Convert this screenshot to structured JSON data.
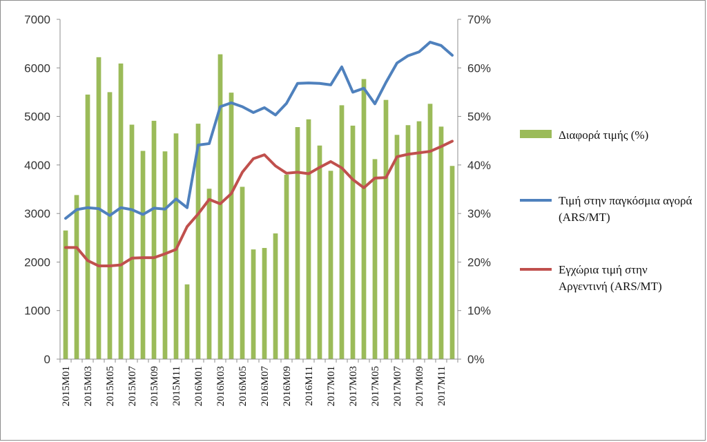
{
  "chart_data": {
    "type": "bar",
    "title": "",
    "xlabel": "",
    "ylabel": "",
    "y_left_lim": [
      0,
      7000
    ],
    "y_right_lim": [
      0,
      70
    ],
    "y_left_ticks": [
      "0",
      "1000",
      "2000",
      "3000",
      "4000",
      "5000",
      "6000",
      "7000"
    ],
    "y_right_ticks": [
      "0%",
      "10%",
      "20%",
      "30%",
      "40%",
      "50%",
      "60%",
      "70%"
    ],
    "grid": false,
    "legend_position": "right",
    "categories": [
      "2015M01",
      "2015M02",
      "2015M03",
      "2015M04",
      "2015M05",
      "2015M06",
      "2015M07",
      "2015M08",
      "2015M09",
      "2015M10",
      "2015M11",
      "2015M12",
      "2016M01",
      "2016M02",
      "2016M03",
      "2016M04",
      "2016M05",
      "2016M06",
      "2016M07",
      "2016M08",
      "2016M09",
      "2016M10",
      "2016M11",
      "2016M12",
      "2017M01",
      "2017M02",
      "2017M03",
      "2017M04",
      "2017M05",
      "2017M06",
      "2017M07",
      "2017M08",
      "2017M09",
      "2017M10",
      "2017M11",
      "2017M12"
    ],
    "x_tick_labels": [
      "2015M01",
      "2015M03",
      "2015M05",
      "2015M07",
      "2015M09",
      "2015M11",
      "2016M01",
      "2016M03",
      "2016M05",
      "2016M07",
      "2016M09",
      "2016M11",
      "2017M01",
      "2017M03",
      "2017M05",
      "2017M07",
      "2017M09",
      "2017M11"
    ],
    "series": [
      {
        "name": "Διαφορά τιμής (%)",
        "type": "bar",
        "axis": "right",
        "color": "#9bbb59",
        "values": [
          26.5,
          33.8,
          54.5,
          62.2,
          55.0,
          60.9,
          48.3,
          42.9,
          49.1,
          42.8,
          46.5,
          15.4,
          48.5,
          35.1,
          62.8,
          54.9,
          35.5,
          22.6,
          22.9,
          25.9,
          38.0,
          47.8,
          49.4,
          44.0,
          38.8,
          52.3,
          48.1,
          57.7,
          41.2,
          53.4,
          46.2,
          48.2,
          49.0,
          52.6,
          47.9,
          39.8
        ]
      },
      {
        "name": "Τιμή στην παγκόσμια αγορά (ARS/MT)",
        "type": "line",
        "axis": "left",
        "color": "#4f81bd",
        "values": [
          2900,
          3080,
          3120,
          3100,
          2960,
          3120,
          3080,
          2980,
          3110,
          3090,
          3300,
          3120,
          4410,
          4440,
          5200,
          5280,
          5200,
          5080,
          5180,
          5030,
          5270,
          5680,
          5690,
          5680,
          5650,
          6020,
          5500,
          5580,
          5260,
          5700,
          6100,
          6250,
          6330,
          6530,
          6460,
          6260
        ]
      },
      {
        "name": "Εγχώρια τιμή στην Αργεντινή (ARS/MT)",
        "type": "line",
        "axis": "left",
        "color": "#c0504d",
        "values": [
          2300,
          2300,
          2030,
          1920,
          1920,
          1940,
          2080,
          2090,
          2090,
          2170,
          2260,
          2730,
          2990,
          3290,
          3200,
          3410,
          3850,
          4130,
          4210,
          3980,
          3830,
          3850,
          3820,
          3950,
          4070,
          3940,
          3700,
          3530,
          3730,
          3740,
          4170,
          4220,
          4250,
          4280,
          4380,
          4490
        ]
      }
    ]
  }
}
